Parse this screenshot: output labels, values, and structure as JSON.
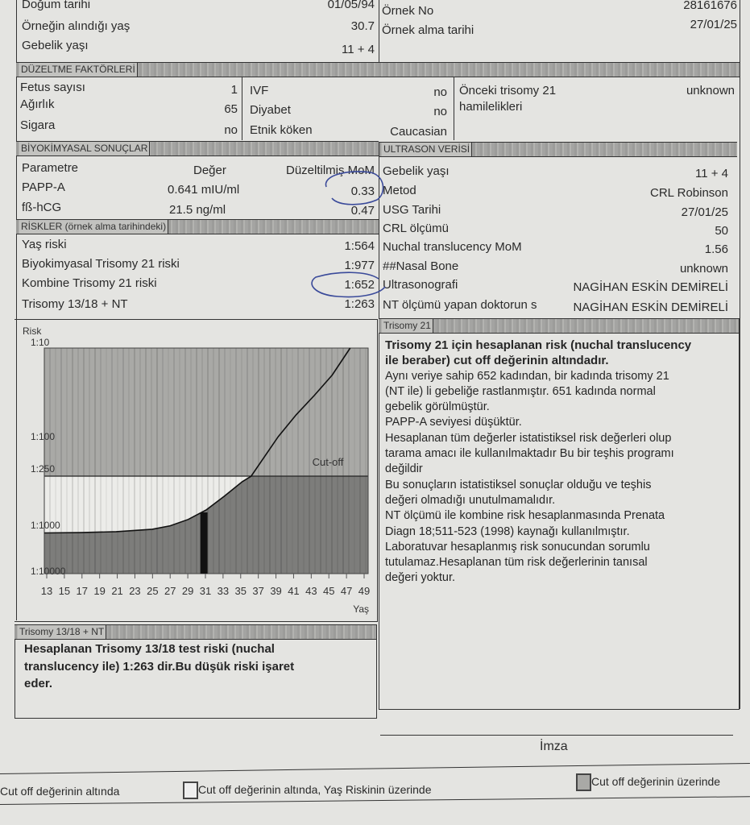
{
  "patient": {
    "rows": [
      {
        "label": "Doğum tarihi",
        "value": "01/05/94"
      },
      {
        "label": "Örneğin alındığı yaş",
        "value": "30.7"
      },
      {
        "label": "Gebelik yaşı",
        "value": "11 + 4"
      }
    ],
    "sample": [
      {
        "label": "Örnek No",
        "value": "28161676"
      },
      {
        "label": "Örnek alma tarihi",
        "value": "27/01/25"
      }
    ]
  },
  "correction": {
    "title": "DÜZELTME FAKTÖRLERİ",
    "col1": [
      {
        "label": "Fetus sayısı",
        "value": "1"
      },
      {
        "label": "Ağırlık",
        "value": "65"
      },
      {
        "label": "Sigara",
        "value": "no"
      }
    ],
    "col2": [
      {
        "label": "IVF",
        "value": "no"
      },
      {
        "label": "Diyabet",
        "value": "no"
      },
      {
        "label": "Etnik köken",
        "value": "Caucasian"
      }
    ],
    "previous_label_1": "Önceki trisomy 21",
    "previous_label_2": "hamilelikleri",
    "previous_value": "unknown"
  },
  "biochem": {
    "title": "BİYOKİMYASAL SONUÇLAR",
    "headers": [
      "Parametre",
      "Değer",
      "Düzeltilmiş MoM"
    ],
    "rows": [
      {
        "param": "PAPP-A",
        "value": "0.641 mIU/ml",
        "mom": "0.33"
      },
      {
        "param": "fß-hCG",
        "value": "21.5 ng/ml",
        "mom": "0.47"
      }
    ]
  },
  "risks": {
    "title": "RİSKLER (örnek alma tarihindeki)",
    "rows": [
      {
        "label": "Yaş riski",
        "value": "1:564"
      },
      {
        "label": "Biyokimyasal Trisomy 21 riski",
        "value": "1:977"
      },
      {
        "label": "Kombine Trisomy 21 riski",
        "value": "1:652"
      },
      {
        "label": "Trisomy 13/18 + NT",
        "value": "1:263"
      }
    ]
  },
  "ultrasound": {
    "title": "ULTRASON VERİSİ",
    "rows": [
      {
        "label": "Gebelik yaşı",
        "value": "11 + 4"
      },
      {
        "label": "Metod",
        "value": "CRL Robinson"
      },
      {
        "label": "USG Tarihi",
        "value": "27/01/25"
      },
      {
        "label": "CRL ölçümü",
        "value": "50"
      },
      {
        "label": "Nuchal translucency MoM",
        "value": "1.56"
      },
      {
        "label": "##Nasal Bone",
        "value": "unknown"
      },
      {
        "label": "Ultrasonografi",
        "value": "NAGİHAN ESKİN DEMİRELİ"
      },
      {
        "label": "NT ölçümü yapan doktorun s",
        "value": "NAGİHAN ESKİN DEMİRELİ"
      }
    ]
  },
  "chart_data": {
    "type": "line",
    "ylabel": "Risk",
    "xlabel": "Yaş",
    "y_scale": "log (risk 1:N)",
    "y_ticks": [
      "1:10",
      "1:100",
      "1:250",
      "1:1000",
      "1:10000"
    ],
    "x_ticks": [
      "13",
      "15",
      "17",
      "19",
      "21",
      "23",
      "25",
      "27",
      "29",
      "31",
      "33",
      "35",
      "37",
      "39",
      "41",
      "43",
      "45",
      "47",
      "49"
    ],
    "xlim": [
      13,
      49
    ],
    "ylim_denominator": [
      10,
      10000
    ],
    "cutoff_label": "Cut-off",
    "cutoff_denominator": 250,
    "series": [
      {
        "x": [
          13,
          17,
          21,
          25,
          27,
          29,
          31,
          33,
          35,
          36,
          39,
          41,
          43,
          45,
          47
        ],
        "y_denominator": [
          1300,
          1280,
          1220,
          1080,
          950,
          800,
          620,
          430,
          290,
          250,
          120,
          70,
          40,
          22,
          10
        ]
      }
    ],
    "patient_age": 30.7,
    "patient_risk_denominator": 652,
    "colors": {
      "above_cutoff": "#a9a9a6",
      "below_curve": "#7d7d7b",
      "low_risk_zone": "#ecece9",
      "marker": "#111111"
    }
  },
  "t21": {
    "title": "Trisomy 21",
    "bold_lines": [
      "Trisomy 21 için hesaplanan risk (nuchal translucency",
      "ile beraber) cut off değerinin altındadır."
    ],
    "lines": [
      "Aynı veriye sahip 652 kadından, bir kadında trisomy 21",
      "(NT ile) li gebeliğe  rastlanmıştır.  651  kadında  normal",
      "gebelik görülmüştür.",
      "PAPP-A  seviyesi düşüktür.",
      "Hesaplanan tüm değerler istatistiksel risk değerleri olup",
      "tarama amacı ile kullanılmaktadır Bu bir teşhis programı",
      "değildir",
      "Bu sonuçların istatistiksel sonuçlar olduğu ve teşhis",
      "değeri olmadığı unutulmamalıdır.",
      "NT ölçümü ile  kombine risk hesaplanmasında Prenata",
      "Diagn 18;511-523 (1998) kaynağı kullanılmıştır.",
      "Laboratuvar hesaplanmış risk sonucundan sorumlu",
      "tutulamaz.Hesaplanan tüm risk değerlerinin  tanısal",
      "değeri yoktur."
    ]
  },
  "t1318": {
    "title": "Trisomy 13/18 + NT",
    "bold_lines": [
      "Hesaplanan Trisomy 13/18 test riski (nuchal",
      "translucency ile)  1:263 dir.Bu düşük riski işaret",
      "eder."
    ]
  },
  "signature_label": "İmza",
  "legend": {
    "item1": "Cut off değerinin altında",
    "item2": "Cut off değerinin  altında, Yaş Riskinin üzerinde",
    "item3": "Cut off değerinin üzerinde"
  },
  "pen_color": "#3a4a9a"
}
